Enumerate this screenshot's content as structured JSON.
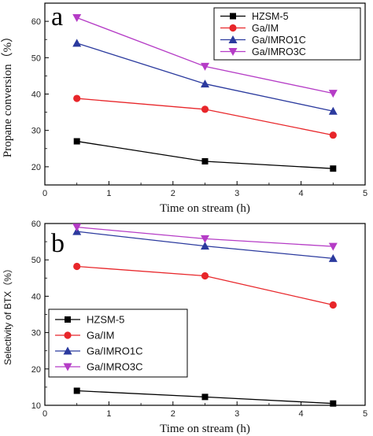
{
  "chart_data": [
    {
      "type": "line",
      "panel_label": "a",
      "xlabel": "Time on stream (h)",
      "ylabel": "Propane conversion（%）",
      "xlim": [
        0,
        5
      ],
      "ylim": [
        15,
        65
      ],
      "xticks": [
        "0",
        "1",
        "2",
        "3",
        "4",
        "5"
      ],
      "yticks": [
        "20",
        "30",
        "40",
        "50",
        "60"
      ],
      "legend_position": "top-right",
      "x": [
        0.5,
        2.5,
        4.5
      ],
      "series": [
        {
          "name": "HZSM-5",
          "values": [
            27,
            21.5,
            19.5
          ],
          "color": "#000000",
          "marker": "square"
        },
        {
          "name": "Ga/IM",
          "values": [
            38.8,
            35.8,
            28.7
          ],
          "color": "#e8262a",
          "marker": "circle"
        },
        {
          "name": "Ga/IMRO1C",
          "values": [
            54,
            42.8,
            35.3
          ],
          "color": "#2b3a9e",
          "marker": "triangle-up"
        },
        {
          "name": "Ga/IMRO3C",
          "values": [
            61,
            47.6,
            40.2
          ],
          "color": "#b53cc6",
          "marker": "triangle-down"
        }
      ]
    },
    {
      "type": "line",
      "panel_label": "b",
      "xlabel": "Time on stream (h)",
      "ylabel": "Selectivity of BTX（%）",
      "xlim": [
        0,
        5
      ],
      "ylim": [
        10,
        60
      ],
      "xticks": [
        "0",
        "1",
        "2",
        "3",
        "4",
        "5"
      ],
      "yticks": [
        "10",
        "20",
        "30",
        "40",
        "50",
        "60"
      ],
      "legend_position": "center-left",
      "x": [
        0.5,
        2.5,
        4.5
      ],
      "series": [
        {
          "name": "HZSM-5",
          "values": [
            14,
            12.3,
            10.5
          ],
          "color": "#000000",
          "marker": "square"
        },
        {
          "name": "Ga/IM",
          "values": [
            48.2,
            45.6,
            37.6
          ],
          "color": "#e8262a",
          "marker": "circle"
        },
        {
          "name": "Ga/IMRO1C",
          "values": [
            57.8,
            53.8,
            50.4
          ],
          "color": "#2b3a9e",
          "marker": "triangle-up"
        },
        {
          "name": "Ga/IMRO3C",
          "values": [
            59,
            55.8,
            53.7
          ],
          "color": "#b53cc6",
          "marker": "triangle-down"
        }
      ]
    }
  ]
}
